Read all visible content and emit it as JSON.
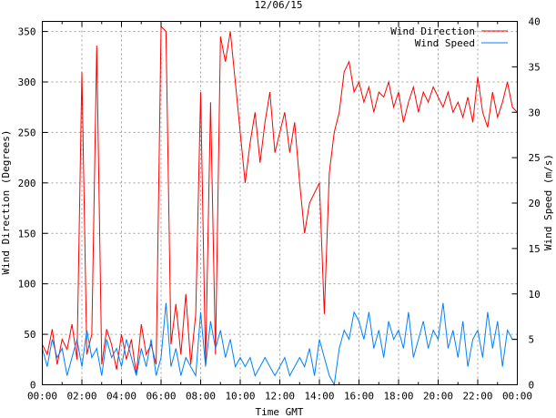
{
  "chart_data": {
    "type": "line",
    "title": "12/06/15",
    "xlabel": "Time GMT",
    "ylabel": "Wind Direction (Degrees)",
    "y2label": "Wind Speed (m/s)",
    "xlim_hours": [
      0,
      24
    ],
    "ylim": [
      0,
      360
    ],
    "y2lim": [
      0,
      40
    ],
    "x_tick_labels": [
      "00:00",
      "02:00",
      "04:00",
      "06:00",
      "08:00",
      "10:00",
      "12:00",
      "14:00",
      "16:00",
      "18:00",
      "20:00",
      "22:00",
      "00:00"
    ],
    "y_ticks": [
      0,
      50,
      100,
      150,
      200,
      250,
      300,
      350
    ],
    "y2_ticks": [
      0,
      5,
      10,
      15,
      20,
      25,
      30,
      35,
      40
    ],
    "grid": true,
    "legend_position": "top-right",
    "x_step_minutes": 15,
    "series": [
      {
        "name": "Wind Direction",
        "axis": "left",
        "color": "#ff0000",
        "values": [
          40,
          30,
          55,
          20,
          45,
          35,
          60,
          25,
          310,
          30,
          50,
          336,
          20,
          55,
          40,
          15,
          50,
          25,
          45,
          10,
          60,
          30,
          40,
          20,
          355,
          350,
          40,
          80,
          30,
          90,
          20,
          70,
          290,
          20,
          280,
          30,
          345,
          320,
          350,
          300,
          250,
          200,
          240,
          270,
          220,
          260,
          290,
          230,
          250,
          270,
          230,
          260,
          200,
          150,
          180,
          190,
          200,
          70,
          210,
          250,
          270,
          310,
          320,
          290,
          300,
          280,
          295,
          270,
          290,
          285,
          300,
          275,
          290,
          260,
          280,
          295,
          270,
          290,
          280,
          295,
          285,
          275,
          290,
          270,
          280,
          265,
          285,
          260,
          305,
          270,
          255,
          290,
          265,
          280,
          300,
          275,
          270
        ]
      },
      {
        "name": "Wind Speed",
        "axis": "right",
        "color": "#0080ff",
        "values": [
          4,
          2,
          5,
          3,
          4,
          1,
          3,
          5,
          2,
          6,
          3,
          4,
          1,
          5,
          3,
          4,
          2,
          5,
          3,
          1,
          4,
          2,
          5,
          1,
          3,
          9,
          2,
          4,
          1,
          3,
          2,
          1,
          8,
          2,
          7,
          4,
          6,
          3,
          5,
          2,
          3,
          2,
          3,
          1,
          2,
          3,
          2,
          1,
          2,
          3,
          1,
          2,
          3,
          2,
          4,
          1,
          5,
          3,
          1,
          0,
          4,
          6,
          5,
          8,
          7,
          5,
          8,
          4,
          6,
          3,
          7,
          5,
          6,
          4,
          8,
          3,
          5,
          7,
          4,
          6,
          5,
          9,
          4,
          6,
          3,
          7,
          2,
          5,
          6,
          3,
          8,
          4,
          7,
          2,
          6,
          5,
          5
        ]
      }
    ]
  }
}
